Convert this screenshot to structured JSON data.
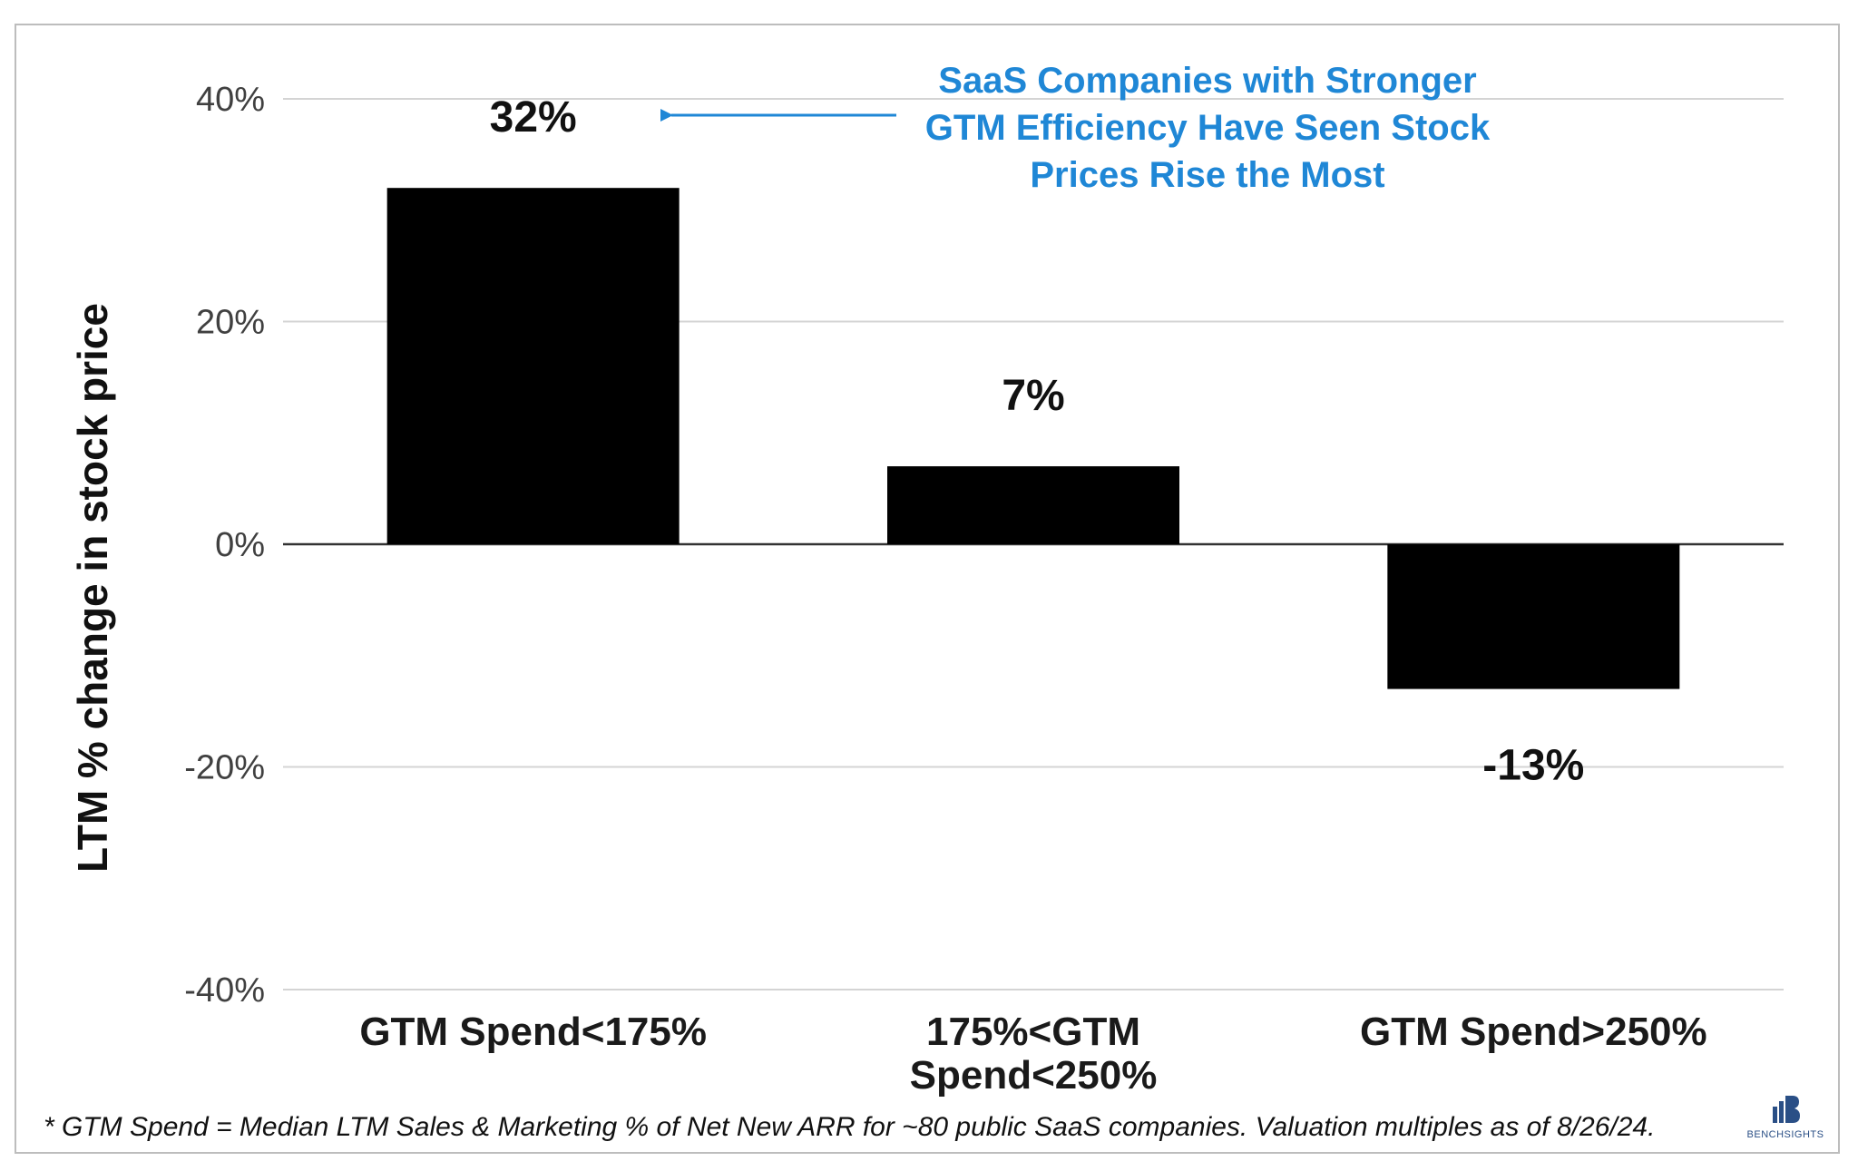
{
  "chart_data": {
    "type": "bar",
    "categories": [
      "GTM Spend<175%",
      "175%<GTM Spend<250%",
      "GTM Spend>250%"
    ],
    "category_lines": [
      [
        "GTM Spend<175%"
      ],
      [
        "175%<GTM",
        "Spend<250%"
      ],
      [
        "GTM Spend>250%"
      ]
    ],
    "values": [
      32,
      7,
      -13
    ],
    "data_labels": [
      "32%",
      "7%",
      "-13%"
    ],
    "ylabel": "LTM % change in stock price",
    "ylim": [
      -40,
      40
    ],
    "yticks": [
      40,
      20,
      0,
      -20,
      -40
    ],
    "ytick_labels": [
      "40%",
      "20%",
      "0%",
      "-20%",
      "-40%"
    ],
    "bar_color": "#000000",
    "grid": true,
    "annotation": {
      "lines": [
        "SaaS Companies with Stronger",
        "GTM Efficiency Have Seen Stock",
        "Prices Rise the Most"
      ],
      "color": "#1f87d6",
      "points_to": "32%"
    }
  },
  "footnote": "* GTM Spend = Median LTM Sales & Marketing % of Net New ARR for ~80 public SaaS companies.  Valuation multiples as of 8/26/24.",
  "logo": {
    "text": "BENCHSIGHTS",
    "icon": "bar-chart-b-logo-icon"
  }
}
